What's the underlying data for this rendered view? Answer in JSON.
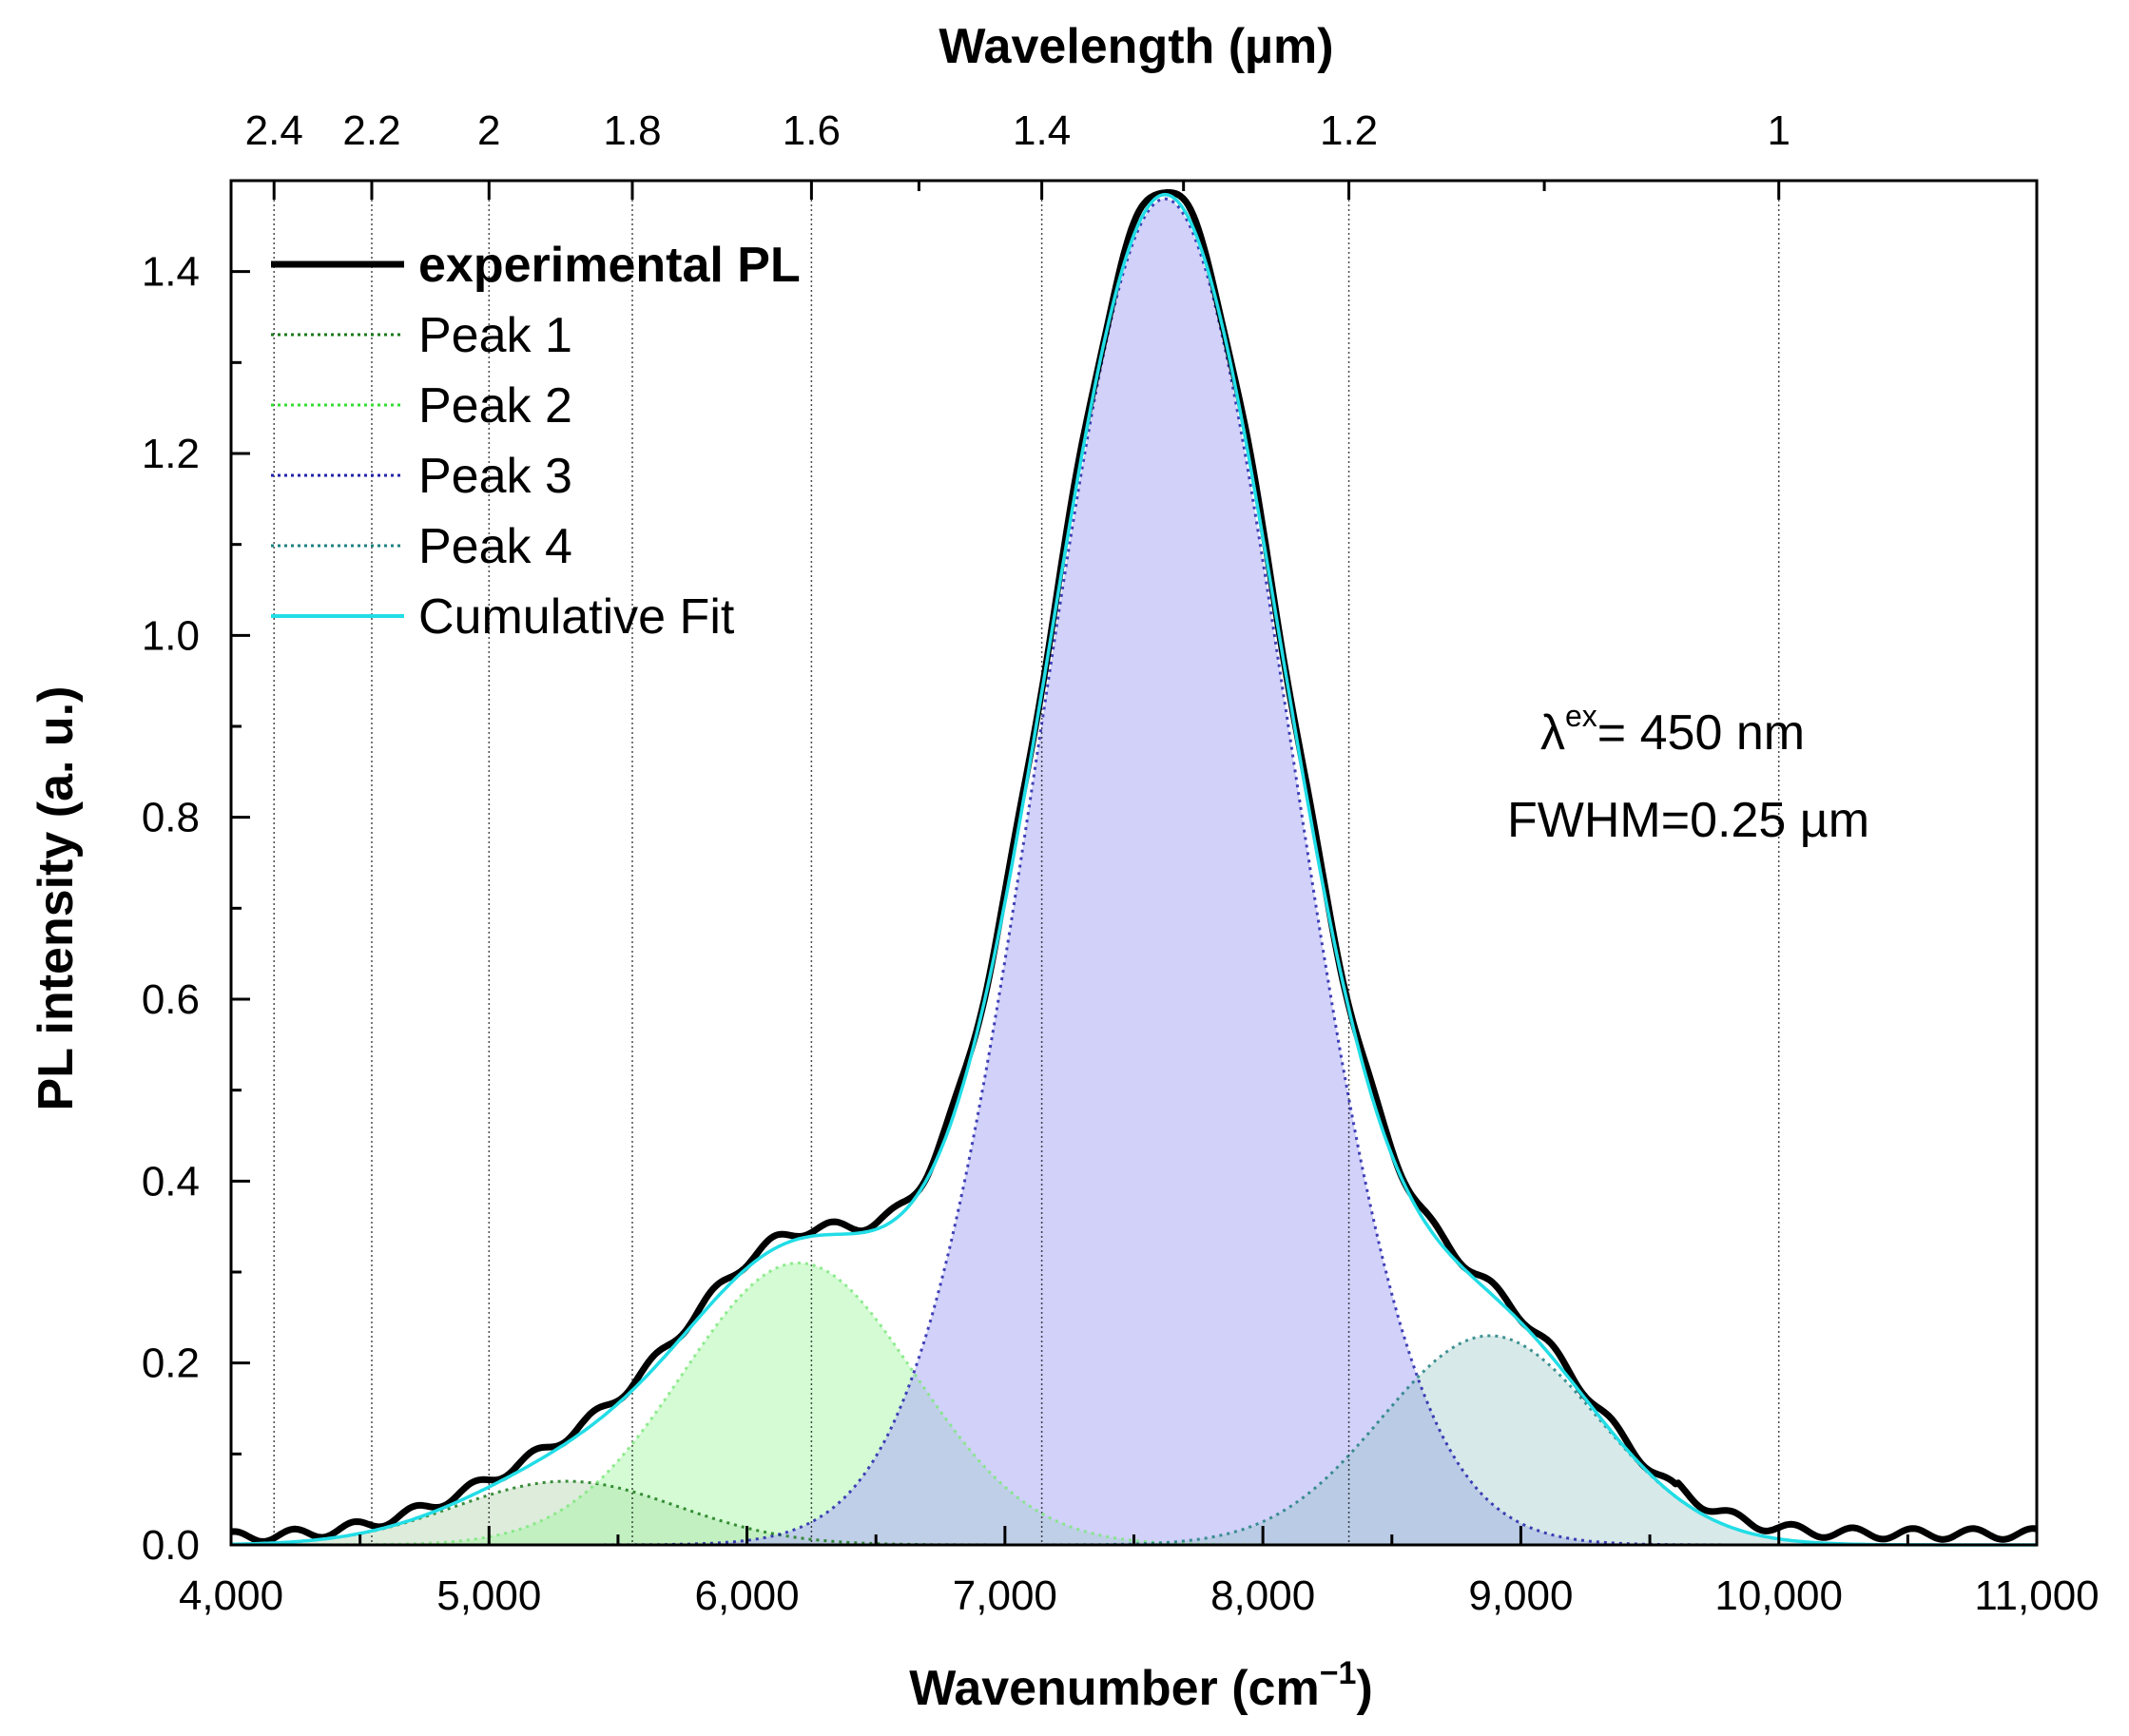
{
  "chart_data": {
    "type": "line",
    "title": "",
    "xlabel": "Wavenumber (cm",
    "xlabel_sup": "−1",
    "xlabel_close": ")",
    "x2label": "Wavelength (µm)",
    "ylabel": "PL intensity (a. u.)",
    "xlim": [
      4000,
      11000
    ],
    "ylim": [
      0,
      1.5
    ],
    "x_ticks": [
      4000,
      5000,
      6000,
      7000,
      8000,
      9000,
      10000,
      11000
    ],
    "x_tick_labels": [
      "4,000",
      "5,000",
      "6,000",
      "7,000",
      "8,000",
      "9,000",
      "10,000",
      "11,000"
    ],
    "y_ticks": [
      0,
      0.2,
      0.4,
      0.6,
      0.8,
      1.0,
      1.2,
      1.4
    ],
    "y_tick_labels": [
      "0.0",
      "0.2",
      "0.4",
      "0.6",
      "0.8",
      "1.0",
      "1.2",
      "1.4"
    ],
    "top_ticks_um": [
      2.4,
      2.2,
      2.0,
      1.8,
      1.6,
      1.4,
      1.2,
      1.0
    ],
    "top_tick_labels": [
      "2.4",
      "2.2",
      "2",
      "1.8",
      "1.6",
      "1.4",
      "1.2",
      "1"
    ],
    "series": [
      {
        "name": "Peak 1",
        "kind": "gaussian",
        "center": 5300,
        "amplitude": 0.07,
        "sigma": 430,
        "color": "#1a7a1a",
        "fill": "#c3dcc0",
        "fill_opacity": 0.55,
        "dash": true,
        "width": 2
      },
      {
        "name": "Peak 2",
        "kind": "gaussian",
        "center": 6200,
        "amplitude": 0.31,
        "sigma": 450,
        "color": "#7ee77e",
        "fill": "#a0f7a0",
        "fill_opacity": 0.45,
        "dash": true,
        "width": 2
      },
      {
        "name": "Peak 3",
        "kind": "gaussian",
        "center": 7620,
        "amplitude": 1.48,
        "sigma": 480,
        "color": "#2222aa",
        "fill": "#b3b3f5",
        "fill_opacity": 0.6,
        "dash": true,
        "width": 2
      },
      {
        "name": "Peak 4",
        "kind": "gaussian",
        "center": 8880,
        "amplitude": 0.23,
        "sigma": 420,
        "color": "#208080",
        "fill": "#8fbfbf",
        "fill_opacity": 0.35,
        "dash": true,
        "width": 2
      },
      {
        "name": "experimental PL",
        "kind": "sum",
        "offset": 0.008,
        "color": "#000000",
        "width": 7
      },
      {
        "name": "Cumulative Fit",
        "kind": "sum",
        "offset": 0,
        "color": "#22dde6",
        "width": 3.5
      }
    ],
    "legend": [
      {
        "label": "experimental PL",
        "color": "#000000",
        "dash": false,
        "bold": true,
        "width": 7
      },
      {
        "label": "Peak 1",
        "color": "#1a7a1a",
        "dash": true,
        "bold": false,
        "width": 3
      },
      {
        "label": "Peak 2",
        "color": "#33dd33",
        "dash": true,
        "bold": false,
        "width": 3
      },
      {
        "label": "Peak 3",
        "color": "#2222aa",
        "dash": true,
        "bold": false,
        "width": 3
      },
      {
        "label": "Peak 4",
        "color": "#208080",
        "dash": true,
        "bold": false,
        "width": 3
      },
      {
        "label": "Cumulative Fit",
        "color": "#22dde6",
        "dash": false,
        "bold": false,
        "width": 4
      }
    ],
    "legend_position": "top-left",
    "annotations": {
      "lambda_symbol": "λ",
      "lambda_sup": "ex",
      "lambda_value": "= 450 nm",
      "fwhm": "FWHM=0.25 µm"
    },
    "grid": "vertical dotted lines at top-axis wavelength ticks"
  }
}
